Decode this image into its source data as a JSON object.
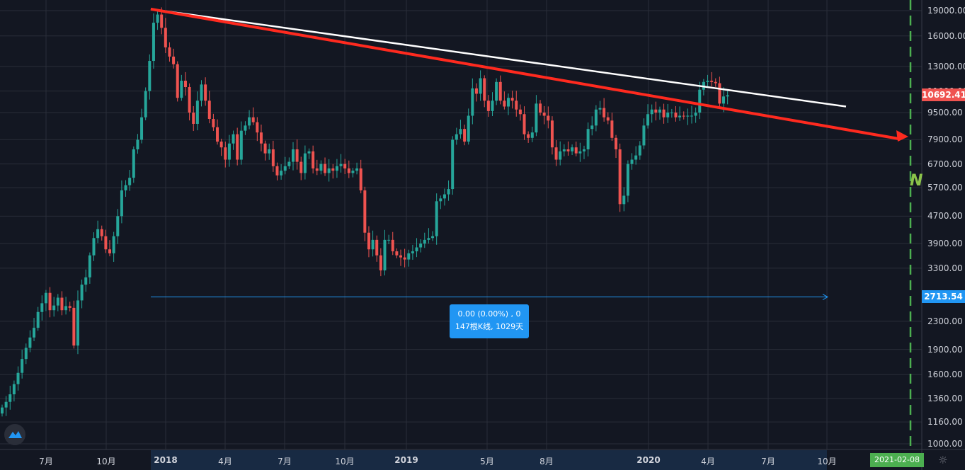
{
  "chart_data": {
    "type": "candlestick",
    "y_scale": "log",
    "ylim": [
      1000,
      19500
    ],
    "y_ticks": [
      "19000.00",
      "16000.00",
      "13000.00",
      "11000.00",
      "9500.00",
      "7900.00",
      "6700.00",
      "5700.00",
      "4700.00",
      "3900.00",
      "3300.00",
      "2300.00",
      "1900.00",
      "1600.00",
      "1360.00",
      "1160.00",
      "1000.00"
    ],
    "x_ticks": [
      "7月",
      "10月",
      "2018",
      "4月",
      "7月",
      "10月",
      "2019",
      "5月",
      "8月",
      "2020",
      "4月",
      "7月",
      "10月"
    ],
    "grid": true,
    "current_price": "10692.41",
    "level_price": "2713.54",
    "future_date": "2021-02-08",
    "measure": {
      "line1": "0.00 (0.00%) , 0",
      "line2": "147根K线, 1029天"
    },
    "wave_label": "N",
    "colors": {
      "up": "#26a69a",
      "down": "#ef5350",
      "bg": "#131722",
      "grid": "#2a2e39",
      "trend_red": "#ff2a1f",
      "trend_white": "#ffffff",
      "level": "#2196f3",
      "future": "#4caf50"
    },
    "weekly_close": [
      1280,
      1330,
      1400,
      1500,
      1620,
      1780,
      1920,
      2060,
      2200,
      2450,
      2600,
      2790,
      2480,
      2560,
      2700,
      2480,
      2550,
      2520,
      1950,
      2650,
      2950,
      3100,
      3600,
      4050,
      4300,
      4100,
      3750,
      3650,
      4100,
      4700,
      5600,
      5800,
      6100,
      7400,
      7900,
      9200,
      11000,
      13500,
      17500,
      18500,
      16900,
      14800,
      13900,
      13200,
      10500,
      11800,
      11300,
      9500,
      8800,
      10300,
      11500,
      10300,
      9100,
      8600,
      7800,
      7500,
      6900,
      7700,
      8200,
      6900,
      8400,
      8700,
      9200,
      8900,
      8300,
      7700,
      7200,
      7400,
      6600,
      6200,
      6400,
      6600,
      6800,
      7400,
      6800,
      6300,
      7200,
      7300,
      6500,
      6400,
      6700,
      6300,
      6500,
      6400,
      6600,
      6700,
      6500,
      6300,
      6400,
      6500,
      5600,
      4200,
      3750,
      4000,
      3600,
      3250,
      4000,
      4000,
      3700,
      3600,
      3550,
      3500,
      3650,
      3700,
      3800,
      3900,
      4000,
      4050,
      4100,
      5200,
      5300,
      5450,
      5650,
      7900,
      8200,
      8500,
      7800,
      9300,
      11200,
      10800,
      12000,
      10300,
      9600,
      10300,
      11700,
      10300,
      9900,
      10500,
      10300,
      9700,
      9400,
      8200,
      8000,
      8300,
      10100,
      9500,
      9300,
      9000,
      7500,
      6900,
      7300,
      7400,
      7300,
      7500,
      7200,
      7300,
      7400,
      8500,
      8700,
      9700,
      9800,
      9200,
      9000,
      8000,
      7400,
      5100,
      5400,
      6700,
      6900,
      7100,
      7600,
      8700,
      9400,
      9700,
      9500,
      9700,
      9200,
      9500,
      9500,
      9200,
      9300,
      9250,
      9300,
      9300,
      9500,
      11100,
      11700,
      11800,
      11700,
      11600,
      10100,
      10600,
      10692
    ]
  }
}
